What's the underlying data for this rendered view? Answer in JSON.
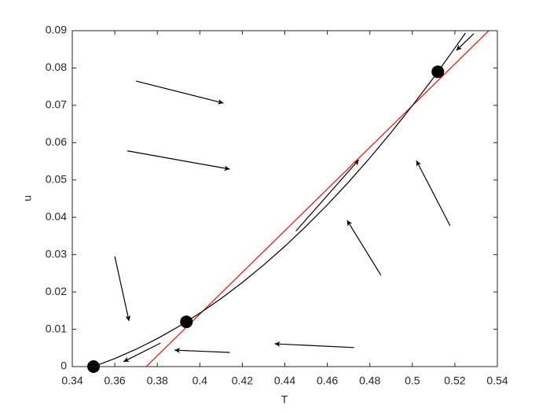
{
  "chart_data": {
    "type": "phase",
    "x_label": "T",
    "y_label": "u",
    "xlim": [
      0.34,
      0.54
    ],
    "ylim": [
      0,
      0.09
    ],
    "xticks": [
      0.34,
      0.36,
      0.38,
      0.4,
      0.42,
      0.44,
      0.46,
      0.48,
      0.5,
      0.52,
      0.54
    ],
    "yticks": [
      0,
      0.01,
      0.02,
      0.03,
      0.04,
      0.05,
      0.06,
      0.07,
      0.08,
      0.09
    ],
    "series": [
      {
        "kind": "line",
        "color": "#ff0000",
        "x": [
          0.3748,
          0.536
        ],
        "values": [
          0,
          0.09
        ]
      },
      {
        "kind": "line",
        "color": "#000000",
        "x": [
          0.35,
          0.36,
          0.37,
          0.38,
          0.39,
          0.4,
          0.41,
          0.42,
          0.43,
          0.44,
          0.45,
          0.46,
          0.47,
          0.48,
          0.49,
          0.5,
          0.51,
          0.52,
          0.525
        ],
        "values": [
          0,
          0.00214,
          0.00464,
          0.0075,
          0.01072,
          0.0143,
          0.01823,
          0.02253,
          0.0272,
          0.03222,
          0.0376,
          0.04334,
          0.04944,
          0.05591,
          0.06273,
          0.06991,
          0.07744,
          0.08535,
          0.0894
        ]
      },
      {
        "kind": "points",
        "color": "#000000",
        "x": [
          0.35,
          0.3937,
          0.512
        ],
        "values": [
          0,
          0.012,
          0.079
        ]
      }
    ],
    "arrows": [
      {
        "from": [
          0.37,
          0.0765
        ],
        "to": [
          0.4111,
          0.0706
        ]
      },
      {
        "from": [
          0.3659,
          0.0578
        ],
        "to": [
          0.4141,
          0.0529
        ]
      },
      {
        "from": [
          0.36,
          0.0295
        ],
        "to": [
          0.3667,
          0.0122
        ]
      },
      {
        "from": [
          0.3815,
          0.0063
        ],
        "to": [
          0.3641,
          0.0013
        ]
      },
      {
        "from": [
          0.4141,
          0.0038
        ],
        "to": [
          0.3881,
          0.0044
        ]
      },
      {
        "from": [
          0.4726,
          0.0051
        ],
        "to": [
          0.4352,
          0.0061
        ]
      },
      {
        "from": [
          0.4452,
          0.0363
        ],
        "to": [
          0.4748,
          0.0554
        ]
      },
      {
        "from": [
          0.4852,
          0.0245
        ],
        "to": [
          0.4693,
          0.0392
        ]
      },
      {
        "from": [
          0.5178,
          0.0377
        ],
        "to": [
          0.5019,
          0.0552
        ]
      },
      {
        "from": [
          0.5289,
          0.0892
        ],
        "to": [
          0.5207,
          0.0847
        ]
      }
    ]
  }
}
